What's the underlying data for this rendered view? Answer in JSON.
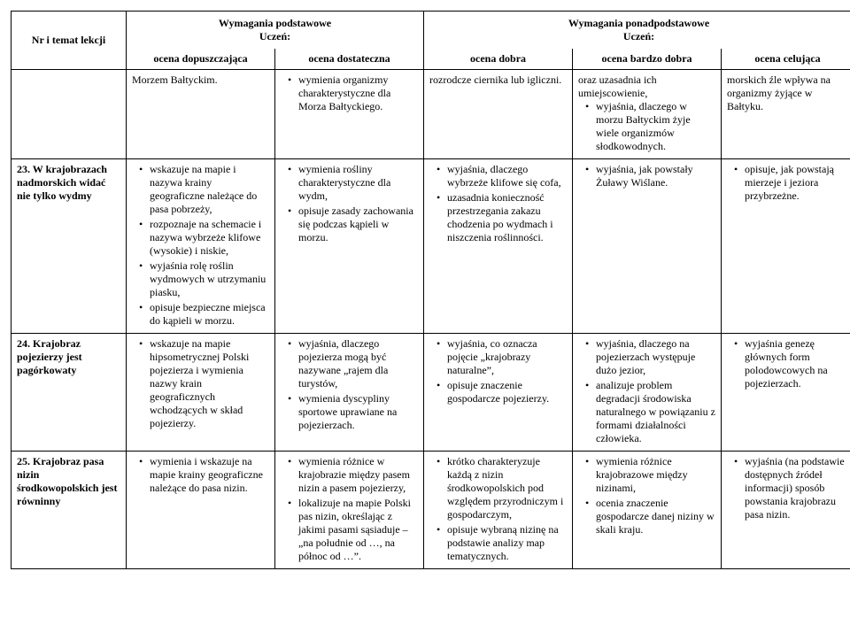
{
  "header": {
    "topic": "Nr i temat lekcji",
    "basic_title": "Wymagania podstawowe",
    "advanced_title": "Wymagania ponadpodstawowe",
    "student": "Uczeń:",
    "grades": {
      "dopuszczajaca": "ocena dopuszczająca",
      "dostateczna": "ocena dostateczna",
      "dobra": "ocena dobra",
      "bardzo_dobra": "ocena bardzo dobra",
      "celujaca": "ocena celująca"
    }
  },
  "rows": [
    {
      "topic": "",
      "c1_plain": "Morzem Bałtyckim.",
      "c2": [
        "wymienia organizmy charakterystyczne dla Morza Bałtyckiego."
      ],
      "c3_plain": "rozrodcze ciernika lub igliczni.",
      "c4_plain_prefix": "oraz uzasadnia ich umiejscowienie,",
      "c4": [
        "wyjaśnia, dlaczego w morzu Bałtyckim żyje wiele organizmów słodkowodnych."
      ],
      "c5_plain": "morskich źle wpływa na organizmy żyjące w Bałtyku."
    },
    {
      "topic": "23. W krajobrazach nadmorskich widać nie tylko wydmy",
      "c1": [
        "wskazuje na mapie i nazywa krainy geograficzne należące do pasa pobrzeży,",
        "rozpoznaje na schemacie i nazywa wybrzeże klifowe (wysokie) i niskie,",
        "wyjaśnia rolę roślin wydmowych w utrzymaniu piasku,",
        "opisuje bezpieczne miejsca do kąpieli w morzu."
      ],
      "c2": [
        "wymienia rośliny charakterystyczne dla wydm,",
        "opisuje zasady zachowania się podczas kąpieli w morzu."
      ],
      "c3": [
        "wyjaśnia, dlaczego wybrzeże klifowe się cofa,",
        "uzasadnia konieczność przestrzegania zakazu chodzenia po wydmach i niszczenia roślinności."
      ],
      "c4": [
        "wyjaśnia, jak powstały Żuławy Wiślane."
      ],
      "c5": [
        "opisuje, jak powstają mierzeje i jeziora przybrzeżne."
      ]
    },
    {
      "topic": "24. Krajobraz pojezierzy jest pagórkowaty",
      "c1": [
        "wskazuje na mapie hipsometrycznej Polski pojezierza i wymienia nazwy krain geograficznych wchodzących w skład pojezierzy."
      ],
      "c2": [
        "wyjaśnia, dlaczego pojezierza mogą być nazywane „rajem dla turystów,",
        "wymienia dyscypliny sportowe uprawiane na pojezierzach."
      ],
      "c3": [
        "wyjaśnia, co oznacza pojęcie „krajobrazy naturalne”,",
        "opisuje znaczenie gospodarcze pojezierzy."
      ],
      "c4": [
        "wyjaśnia, dlaczego na pojezierzach występuje dużo jezior,",
        "analizuje problem degradacji środowiska naturalnego w powiązaniu z formami działalności człowieka."
      ],
      "c5": [
        "wyjaśnia genezę głównych form polodowcowych na pojezierzach."
      ]
    },
    {
      "topic": "25. Krajobraz pasa nizin środkowopolskich jest równinny",
      "c1": [
        "wymienia i wskazuje na mapie krainy geograficzne należące do pasa nizin."
      ],
      "c2": [
        "wymienia różnice w krajobrazie między pasem nizin a pasem pojezierzy,",
        "lokalizuje na mapie Polski pas nizin, określając z jakimi pasami sąsiaduje – „na południe od …, na północ od …”."
      ],
      "c3": [
        "krótko charakteryzuje każdą z nizin środkowopolskich pod względem przyrodniczym i gospodarczym,",
        "opisuje wybraną nizinę na podstawie analizy map tematycznych."
      ],
      "c4": [
        "wymienia różnice krajobrazowe między nizinami,",
        "ocenia znaczenie gospodarcze danej niziny w skali kraju."
      ],
      "c5": [
        "wyjaśnia (na podstawie dostępnych źródeł informacji) sposób powstania krajobrazu pasa nizin."
      ]
    }
  ]
}
